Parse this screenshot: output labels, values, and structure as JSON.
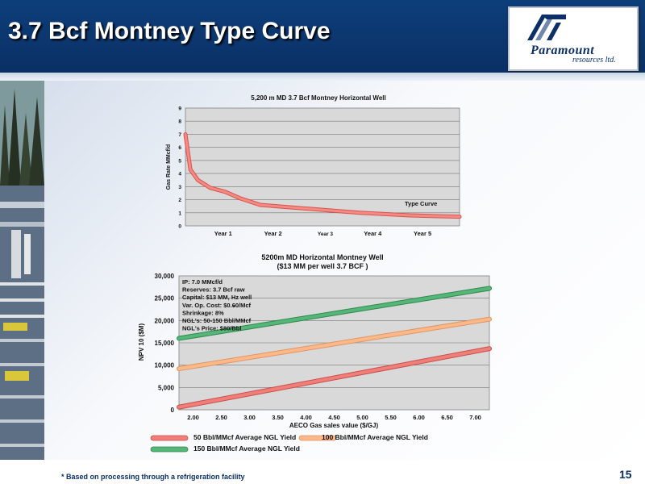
{
  "header": {
    "title": "3.7 Bcf Montney Type Curve"
  },
  "logo": {
    "name": "Paramount",
    "sub": "resources ltd."
  },
  "colors": {
    "header_bg": "#0e3e7a",
    "red": "#f07f79",
    "orange": "#fbb88a",
    "green": "#55b678",
    "type_curve": "#f48a84"
  },
  "chart_data": [
    {
      "type": "line",
      "title": "5,200 m MD 3.7 Bcf Montney Horizontal Well",
      "ylabel": "Gas Rate MMcf/d",
      "xlabel": "",
      "ylim": [
        0,
        9
      ],
      "yticks": [
        "0",
        "1",
        "2",
        "3",
        "4",
        "5",
        "6",
        "7",
        "8",
        "9"
      ],
      "xtick_labels": [
        "Year 1",
        "Year 2",
        "Year 3",
        "Year 4",
        "Year 5"
      ],
      "xlim": [
        0,
        5.5
      ],
      "grid": true,
      "annotation": "Type Curve",
      "series": [
        {
          "name": "Type Curve",
          "x": [
            0,
            0.1,
            0.25,
            0.5,
            0.8,
            1.1,
            1.5,
            2.0,
            2.5,
            3.0,
            3.5,
            4.0,
            4.5,
            5.0,
            5.5
          ],
          "y": [
            7.0,
            4.3,
            3.5,
            2.9,
            2.6,
            2.1,
            1.6,
            1.45,
            1.3,
            1.15,
            1.0,
            0.9,
            0.8,
            0.75,
            0.7
          ]
        }
      ]
    },
    {
      "type": "line",
      "title": "5200m MD Horizontal Montney Well",
      "subtitle": "($13 MM per well 3.7 BCF )",
      "ylabel": "NPV 10 ($M)",
      "xlabel": "AECO Gas sales value ($/GJ)",
      "ylim": [
        0,
        30000
      ],
      "yticks": [
        "0",
        "5,000",
        "10,000",
        "15,000",
        "20,000",
        "25,000",
        "30,000"
      ],
      "categories": [
        "2.00",
        "2.50",
        "3.00",
        "3.50",
        "4.00",
        "4.50",
        "5.00",
        "5.50",
        "6.00",
        "6.50",
        "7.00"
      ],
      "xlim": [
        1.75,
        7.25
      ],
      "grid": true,
      "legend_position": "bottom",
      "params": [
        "IP: 7.0 MMcf/d",
        "Reserves: 3.7 Bcf raw",
        "Capital: $13 MM, Hz well",
        "Var. Op. Cost: $0.60/Mcf",
        "Shrinkage: 8%",
        "NGL's: 50-150 Bbl/MMcf",
        "NGL's Price: $80/Bbl"
      ],
      "shrinkage_mark": "*",
      "series": [
        {
          "name": "50 Bbl/MMcf Average NGL Yield",
          "color": "red",
          "x": [
            1.75,
            7.25
          ],
          "y": [
            600,
            13700
          ]
        },
        {
          "name": "100 Bbl/MMcf Average NGL Yield",
          "color": "orange",
          "x": [
            1.75,
            7.25
          ],
          "y": [
            9200,
            20300
          ]
        },
        {
          "name": "150 Bbl/MMcf Average NGL Yield",
          "color": "green",
          "x": [
            1.75,
            7.25
          ],
          "y": [
            16000,
            27200
          ]
        }
      ]
    }
  ],
  "footnote": "* Based on processing through a refrigeration facility",
  "page_number": "15"
}
